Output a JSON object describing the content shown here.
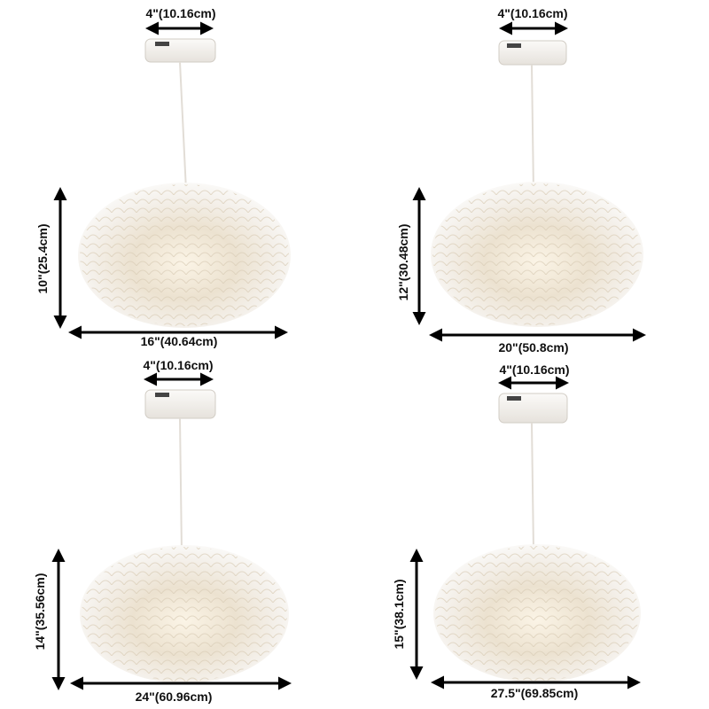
{
  "panels": [
    {
      "canopy_width": "4\"(10.16cm)",
      "height": "10\"(25.4cm)",
      "diameter": "16\"(40.64cm)"
    },
    {
      "canopy_width": "4\"(10.16cm)",
      "height": "12\"(30.48cm)",
      "diameter": "20\"(50.8cm)"
    },
    {
      "canopy_width": "4\"(10.16cm)",
      "height": "14\"(35.56cm)",
      "diameter": "24\"(60.96cm)"
    },
    {
      "canopy_width": "4\"(10.16cm)",
      "height": "15\"(38.1cm)",
      "diameter": "27.5\"(69.85cm)"
    }
  ],
  "colors": {
    "shade": "#f3efe8",
    "shade_warm": "#e9dcc6",
    "arrow": "#000000",
    "canopy": "#f4f2ee"
  }
}
